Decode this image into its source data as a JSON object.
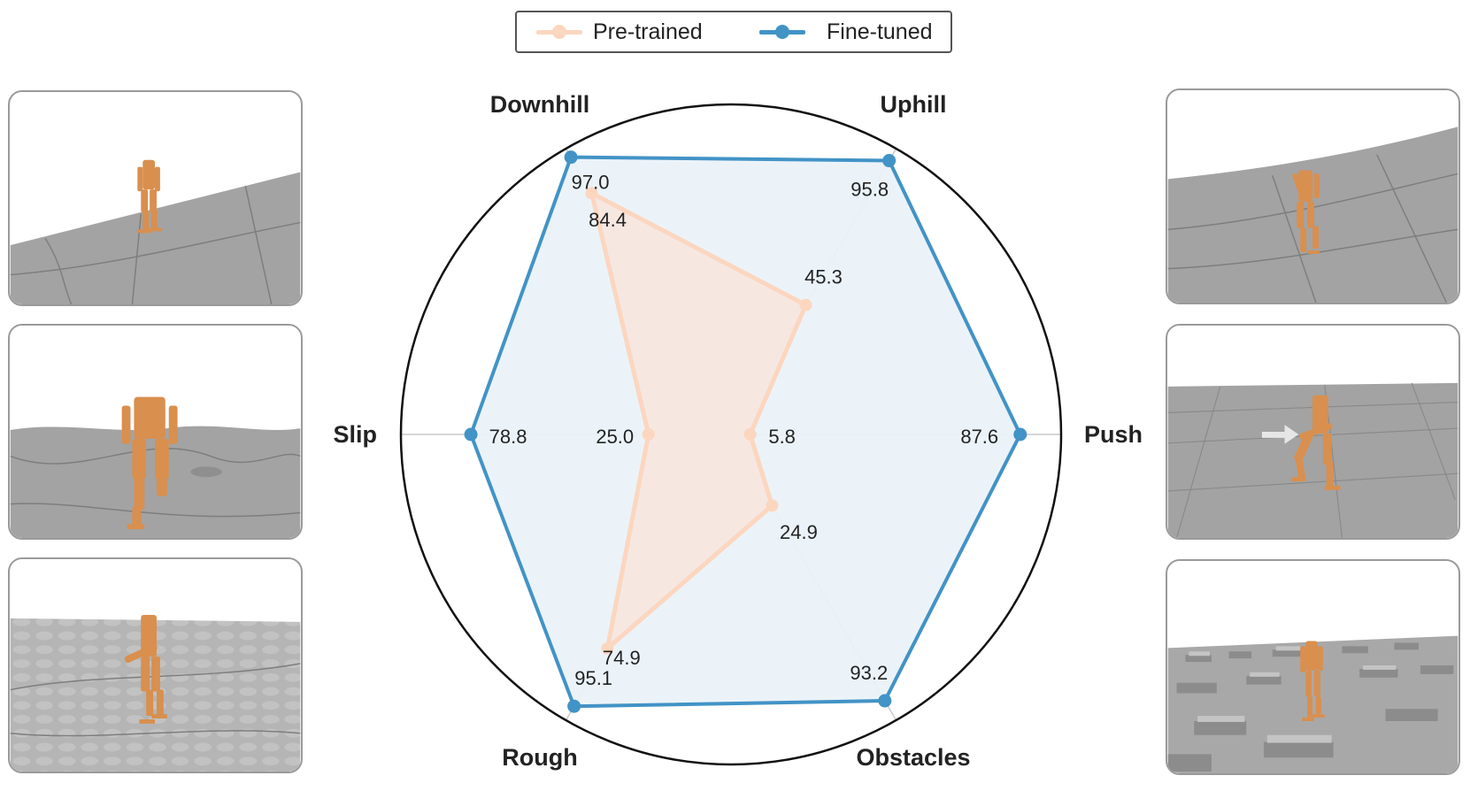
{
  "chart_data": {
    "type": "radar",
    "axes": [
      "Push",
      "Uphill",
      "Downhill",
      "Slip",
      "Rough",
      "Obstacles"
    ],
    "rmax": 100,
    "series": [
      {
        "name": "Pre-trained",
        "values": [
          5.8,
          45.3,
          84.4,
          25.0,
          74.9,
          24.9
        ],
        "color": "#fcd6bf"
      },
      {
        "name": "Fine-tuned",
        "values": [
          87.6,
          95.8,
          97.0,
          78.8,
          95.1,
          93.2
        ],
        "color": "#4293c6"
      }
    ],
    "legend_position": "top-center",
    "grid": true
  },
  "legend": {
    "pretrained_label": "Pre-trained",
    "finetuned_label": "Fine-tuned"
  },
  "colors": {
    "pretrained": "#fcd6bf",
    "finetuned": "#4293c6",
    "finetuned_fill": "#eaf2f9",
    "pretrained_fill": "#f9e3d8",
    "robot": "#d98f4e",
    "ground": "#a3a3a3"
  },
  "panels": {
    "left": [
      "downhill-scene",
      "slip-scene",
      "rough-scene"
    ],
    "right": [
      "uphill-scene",
      "push-scene",
      "obstacles-scene"
    ]
  }
}
